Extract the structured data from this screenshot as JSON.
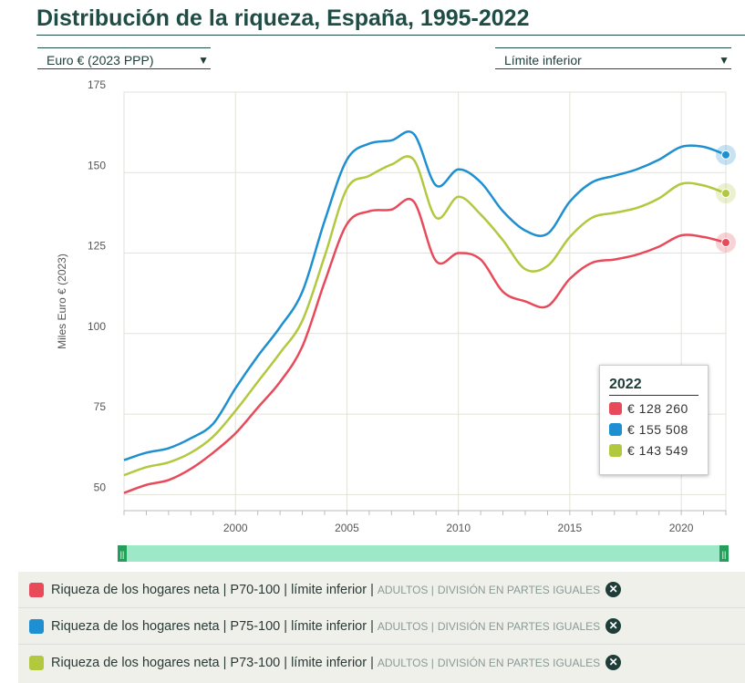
{
  "title": "Distribución de la riqueza, España, 1995-2022",
  "controls": {
    "currency": "Euro € (2023 PPP)",
    "bound": "Límite inferior"
  },
  "tooltip": {
    "year": "2022",
    "values": [
      "€ 128 260",
      "€ 155 508",
      "€ 143 549"
    ]
  },
  "legend": [
    {
      "main": "Riqueza de los hogares neta | P70-100 | límite inferior |",
      "sub1": "ADULTOS |",
      "sub2": "DIVISIÓN EN PARTES IGUALES",
      "color": "#e84a5a"
    },
    {
      "main": "Riqueza de los hogares neta | P75-100 | límite inferior |",
      "sub1": "ADULTOS |",
      "sub2": "DIVISIÓN EN PARTES IGUALES",
      "color": "#1e8fd0"
    },
    {
      "main": "Riqueza de los hogares neta | P73-100 | límite inferior |",
      "sub1": "ADULTOS |",
      "sub2": "DIVISIÓN EN PARTES IGUALES",
      "color": "#b1c83f"
    }
  ],
  "chart_data": {
    "type": "line",
    "ylabel": "Miles Euro € (2023)",
    "xlim": [
      1995,
      2022
    ],
    "ylim": [
      45,
      175
    ],
    "xticks": [
      2000,
      2005,
      2010,
      2015,
      2020
    ],
    "yticks": [
      50,
      75,
      100,
      125,
      150,
      175
    ],
    "grid": true,
    "x": [
      1995,
      1996,
      1997,
      1998,
      1999,
      2000,
      2001,
      2002,
      2003,
      2004,
      2005,
      2006,
      2007,
      2008,
      2009,
      2010,
      2011,
      2012,
      2013,
      2014,
      2015,
      2016,
      2017,
      2018,
      2019,
      2020,
      2021,
      2022
    ],
    "series": [
      {
        "name": "Riqueza de los hogares neta | P70-100 | límite inferior",
        "color": "#e84a5a",
        "values": [
          50.5,
          53,
          54.5,
          58,
          63,
          69,
          77,
          85,
          96,
          116,
          134,
          138,
          138.5,
          141,
          122.5,
          125,
          123,
          113,
          110,
          108.5,
          117,
          122,
          123,
          124.5,
          127,
          130.5,
          130,
          128.26
        ]
      },
      {
        "name": "Riqueza de los hogares neta | P75-100 | límite inferior",
        "color": "#1e8fd0",
        "values": [
          60.7,
          63,
          64.4,
          67.5,
          72,
          83,
          93,
          102,
          113,
          135,
          154,
          159,
          160,
          162,
          146,
          151,
          147,
          138,
          132,
          131,
          141,
          147,
          149,
          151,
          154,
          158,
          158,
          155.51
        ]
      },
      {
        "name": "Riqueza de los hogares neta | P73-100 | límite inferior",
        "color": "#b1c83f",
        "values": [
          56,
          58.5,
          60,
          63,
          68,
          76,
          85,
          94,
          104,
          124,
          145,
          149,
          152.5,
          154,
          136,
          142.5,
          137,
          129,
          120,
          121,
          130,
          136,
          137.5,
          139,
          142,
          146.5,
          146,
          143.55
        ]
      }
    ]
  }
}
